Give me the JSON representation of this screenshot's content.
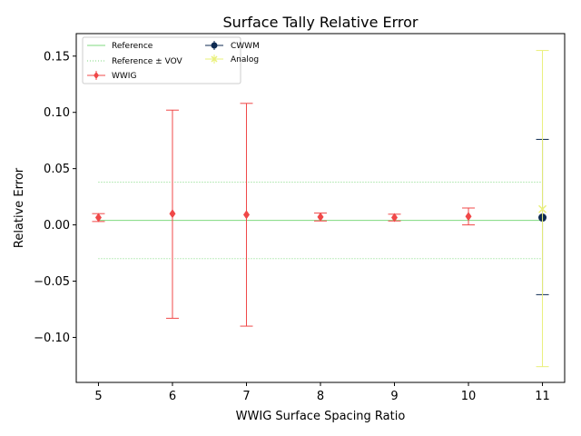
{
  "chart_data": {
    "type": "scatter",
    "title": "Surface Tally Relative Error",
    "xlabel": "WWIG Surface Spacing Ratio",
    "ylabel": "Relative Error",
    "xlim": [
      4.7,
      11.3
    ],
    "ylim": [
      -0.14,
      0.17
    ],
    "xticks": [
      5,
      6,
      7,
      8,
      9,
      10,
      11
    ],
    "yticks": [
      -0.1,
      -0.05,
      0.0,
      0.05,
      0.1,
      0.15
    ],
    "ytick_labels": [
      "−0.10",
      "−0.05",
      "0.00",
      "0.05",
      "0.10",
      "0.15"
    ],
    "grid": false,
    "legend_position": "top-left",
    "reference": {
      "value": 0.004,
      "vov_upper": 0.038,
      "vov_lower": -0.03,
      "x_range": [
        5,
        11
      ],
      "color": "#7fd97f"
    },
    "series": [
      {
        "name": "WWIG",
        "color": "#f04848",
        "marker": "diamond",
        "x": [
          5,
          6,
          7,
          8,
          9,
          10
        ],
        "y": [
          0.0065,
          0.01,
          0.009,
          0.007,
          0.0065,
          0.0075
        ],
        "err_low": [
          0.0035,
          0.093,
          0.099,
          0.0035,
          0.003,
          0.0075
        ],
        "err_high": [
          0.0035,
          0.092,
          0.099,
          0.0035,
          0.003,
          0.0075
        ]
      },
      {
        "name": "CWWM",
        "color": "#0d2a52",
        "marker": "circle",
        "x": [
          11
        ],
        "y": [
          0.0065
        ],
        "err_low": [
          0.0685
        ],
        "err_high": [
          0.0695
        ]
      },
      {
        "name": "Analog",
        "color": "#eaf07a",
        "marker": "x",
        "x": [
          11
        ],
        "y": [
          0.014
        ],
        "err_low": [
          0.14
        ],
        "err_high": [
          0.141
        ]
      }
    ],
    "legend": {
      "reference": "Reference",
      "vov": "Reference ± VOV",
      "wwig": "WWIG",
      "cwwm": "CWWM",
      "analog": "Analog"
    }
  }
}
